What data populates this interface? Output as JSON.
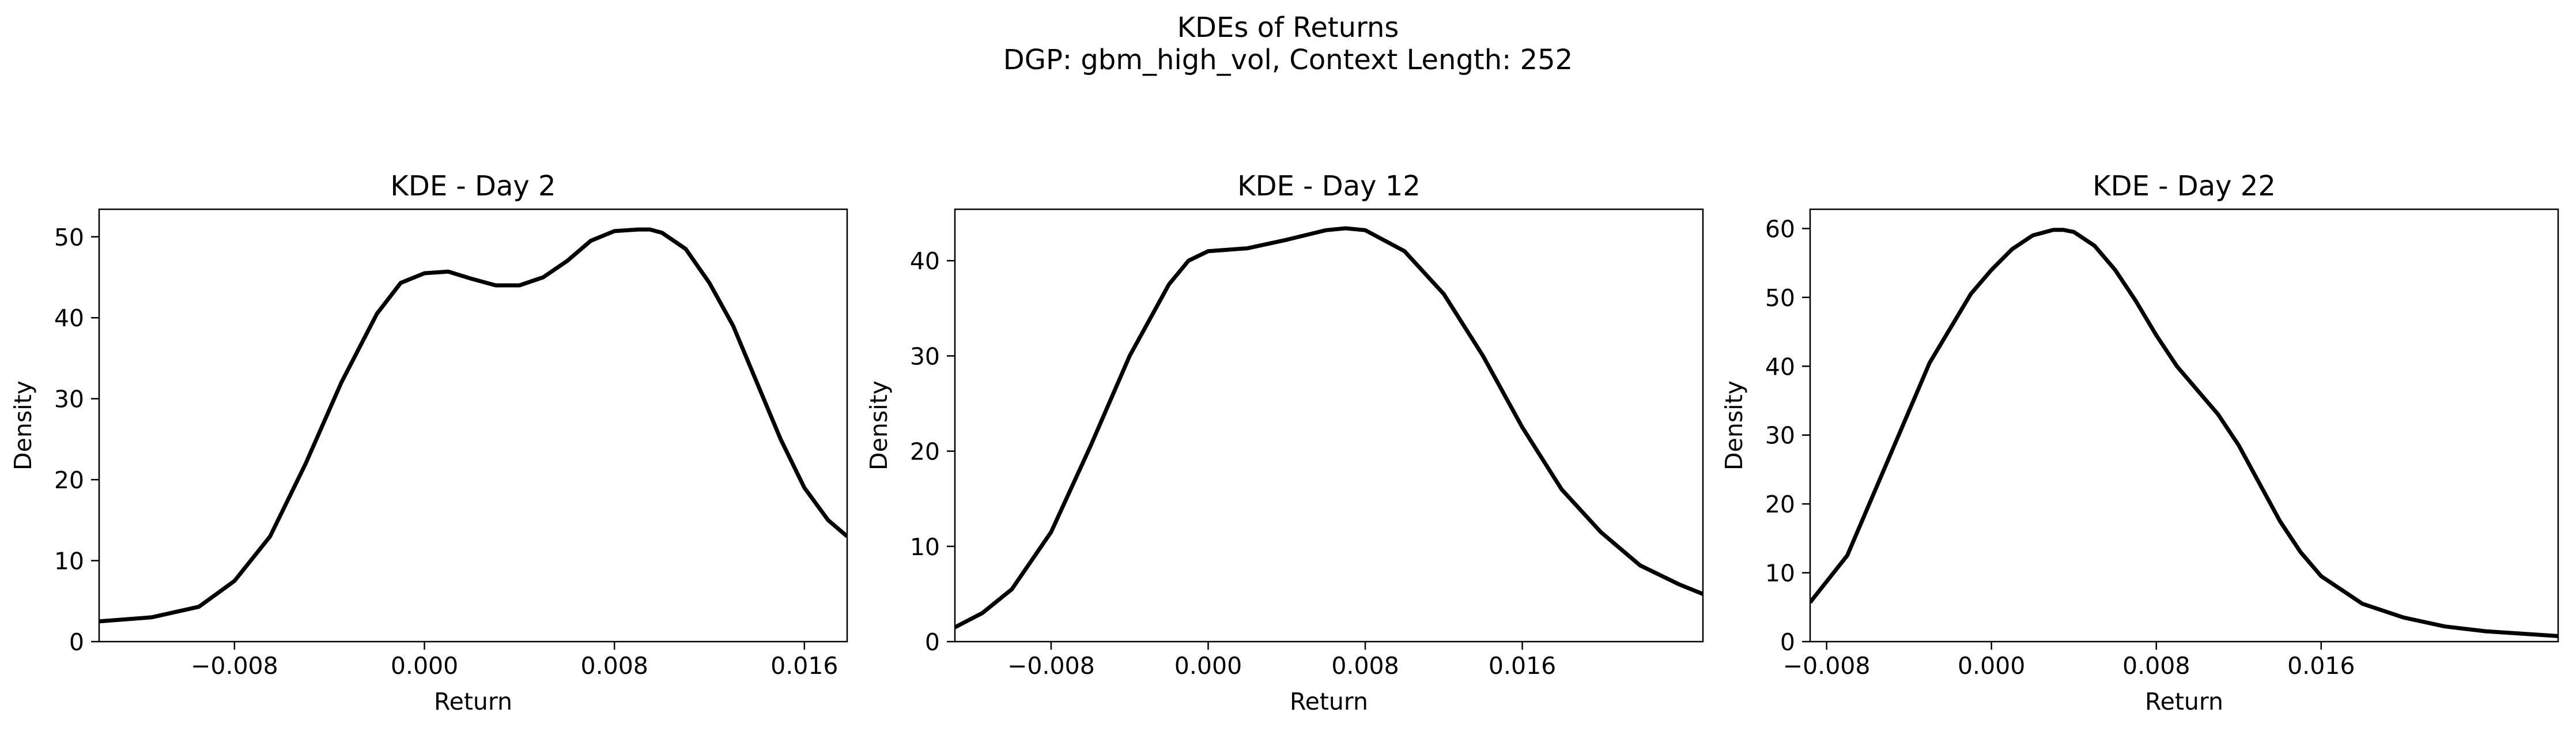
{
  "figure": {
    "title_line1": "KDEs of Returns",
    "title_line2": "DGP: gbm_high_vol, Context Length: 252"
  },
  "chart_data": [
    {
      "type": "line",
      "title": "KDE - Day 2",
      "xlabel": "Return",
      "ylabel": "Density",
      "xlim": [
        -0.0137,
        0.0178
      ],
      "ylim": [
        0,
        53.4
      ],
      "xticks": [
        -0.008,
        0.0,
        0.008,
        0.016
      ],
      "xtick_labels": [
        "−0.008",
        "0.000",
        "0.008",
        "0.016"
      ],
      "yticks": [
        0,
        10,
        20,
        30,
        40,
        50
      ],
      "ytick_labels": [
        "0",
        "10",
        "20",
        "30",
        "40",
        "50"
      ],
      "grid": false,
      "color": "#000000",
      "series": [
        {
          "x": [
            -0.0137,
            -0.0115,
            -0.0095,
            -0.008,
            -0.0065,
            -0.005,
            -0.0035,
            -0.002,
            -0.001,
            0.0,
            0.001,
            0.002,
            0.003,
            0.004,
            0.005,
            0.006,
            0.007,
            0.008,
            0.009,
            0.0095,
            0.01,
            0.011,
            0.012,
            0.013,
            0.014,
            0.015,
            0.016,
            0.017,
            0.0178
          ],
          "y": [
            2.5,
            3.0,
            4.3,
            7.5,
            13.0,
            22.0,
            32.0,
            40.5,
            44.3,
            45.5,
            45.7,
            44.8,
            44.0,
            44.0,
            45.0,
            47.0,
            49.5,
            50.7,
            50.9,
            50.9,
            50.5,
            48.5,
            44.3,
            39.0,
            32.0,
            25.0,
            19.0,
            15.0,
            13.0
          ]
        }
      ]
    },
    {
      "type": "line",
      "title": "KDE - Day 12",
      "xlabel": "Return",
      "ylabel": "Density",
      "xlim": [
        -0.0129,
        0.0252
      ],
      "ylim": [
        0,
        45.4
      ],
      "xticks": [
        -0.008,
        0.0,
        0.008,
        0.016
      ],
      "xtick_labels": [
        "−0.008",
        "0.000",
        "0.008",
        "0.016"
      ],
      "yticks": [
        0,
        10,
        20,
        30,
        40
      ],
      "ytick_labels": [
        "0",
        "10",
        "20",
        "30",
        "40"
      ],
      "grid": false,
      "color": "#000000",
      "series": [
        {
          "x": [
            -0.0129,
            -0.0115,
            -0.01,
            -0.008,
            -0.006,
            -0.004,
            -0.002,
            -0.001,
            0.0,
            0.002,
            0.004,
            0.006,
            0.007,
            0.008,
            0.01,
            0.012,
            0.014,
            0.016,
            0.018,
            0.02,
            0.022,
            0.024,
            0.0252
          ],
          "y": [
            1.5,
            3.0,
            5.5,
            11.5,
            20.5,
            30.0,
            37.5,
            40.0,
            41.0,
            41.3,
            42.2,
            43.2,
            43.4,
            43.2,
            41.0,
            36.5,
            30.0,
            22.5,
            16.0,
            11.5,
            8.0,
            6.0,
            5.0
          ]
        }
      ]
    },
    {
      "type": "line",
      "title": "KDE - Day 22",
      "xlabel": "Return",
      "ylabel": "Density",
      "xlim": [
        -0.0088,
        0.0275
      ],
      "ylim": [
        0,
        62.8
      ],
      "xticks": [
        -0.008,
        0.0,
        0.008,
        0.016
      ],
      "xtick_labels": [
        "−0.008",
        "0.000",
        "0.008",
        "0.016"
      ],
      "yticks": [
        0,
        10,
        20,
        30,
        40,
        50,
        60
      ],
      "ytick_labels": [
        "0",
        "10",
        "20",
        "30",
        "40",
        "50",
        "60"
      ],
      "grid": false,
      "color": "#000000",
      "series": [
        {
          "x": [
            -0.0088,
            -0.007,
            -0.005,
            -0.003,
            -0.001,
            0.0,
            0.001,
            0.002,
            0.003,
            0.0035,
            0.004,
            0.005,
            0.006,
            0.007,
            0.008,
            0.009,
            0.01,
            0.011,
            0.012,
            0.013,
            0.014,
            0.015,
            0.016,
            0.018,
            0.02,
            0.022,
            0.024,
            0.0275
          ],
          "y": [
            5.7,
            12.5,
            26.5,
            40.5,
            50.5,
            54.0,
            57.0,
            59.0,
            59.8,
            59.8,
            59.5,
            57.5,
            54.0,
            49.5,
            44.5,
            40.0,
            36.5,
            33.0,
            28.5,
            23.0,
            17.5,
            13.0,
            9.5,
            5.5,
            3.5,
            2.2,
            1.5,
            0.8
          ]
        }
      ]
    }
  ]
}
